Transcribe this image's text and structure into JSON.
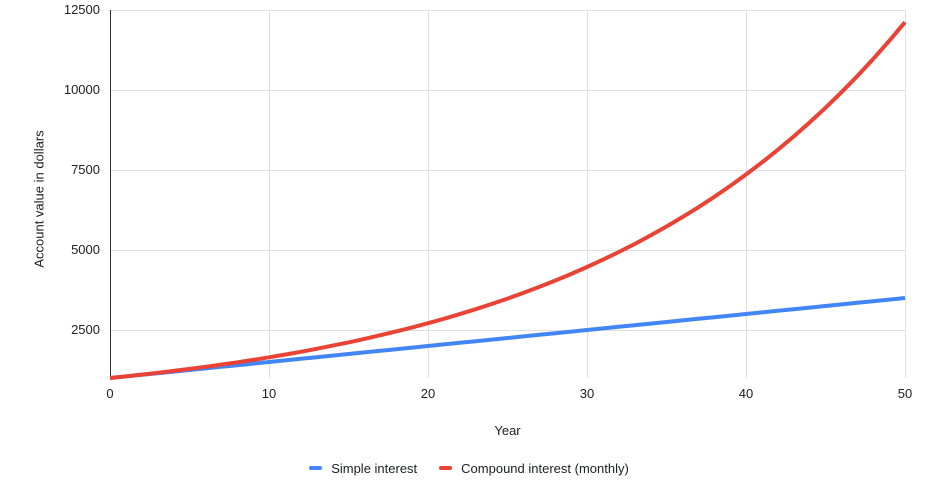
{
  "chart_data": {
    "type": "line",
    "title": "",
    "xlabel": "Year",
    "ylabel": "Account value in dollars",
    "xlim": [
      0,
      50
    ],
    "ylim": [
      1000,
      12500
    ],
    "x_ticks": [
      0,
      10,
      20,
      30,
      40,
      50
    ],
    "y_ticks": [
      2500,
      5000,
      7500,
      10000,
      12500
    ],
    "grid": true,
    "legend_position": "bottom",
    "x": [
      0,
      1,
      2,
      3,
      4,
      5,
      6,
      7,
      8,
      9,
      10,
      11,
      12,
      13,
      14,
      15,
      16,
      17,
      18,
      19,
      20,
      21,
      22,
      23,
      24,
      25,
      26,
      27,
      28,
      29,
      30,
      31,
      32,
      33,
      34,
      35,
      36,
      37,
      38,
      39,
      40,
      41,
      42,
      43,
      44,
      45,
      46,
      47,
      48,
      49,
      50
    ],
    "series": [
      {
        "name": "Simple interest",
        "color": "#4285F4",
        "values": [
          1000,
          1050,
          1100,
          1150,
          1200,
          1250,
          1300,
          1350,
          1400,
          1450,
          1500,
          1550,
          1600,
          1650,
          1700,
          1750,
          1800,
          1850,
          1900,
          1950,
          2000,
          2050,
          2100,
          2150,
          2200,
          2250,
          2300,
          2350,
          2400,
          2450,
          2500,
          2550,
          2600,
          2650,
          2700,
          2750,
          2800,
          2850,
          2900,
          2950,
          3000,
          3050,
          3100,
          3150,
          3200,
          3250,
          3300,
          3350,
          3400,
          3450,
          3500
        ]
      },
      {
        "name": "Compound interest (monthly)",
        "color": "#EA4335",
        "values": [
          1000,
          1051,
          1105,
          1161,
          1221,
          1283,
          1349,
          1418,
          1491,
          1567,
          1647,
          1731,
          1820,
          1913,
          2011,
          2114,
          2222,
          2336,
          2455,
          2581,
          2713,
          2851,
          2997,
          3151,
          3312,
          3481,
          3659,
          3847,
          4043,
          4250,
          4468,
          4696,
          4937,
          5189,
          5455,
          5734,
          6027,
          6335,
          6660,
          7000,
          7358,
          7735,
          8131,
          8547,
          8984,
          9443,
          9927,
          10435,
          10968,
          11530,
          12119
        ]
      }
    ]
  },
  "colors": {
    "background": "#ffffff",
    "gridline": "#e0e0e0",
    "axis_line": "#333333",
    "text": "#202124"
  }
}
